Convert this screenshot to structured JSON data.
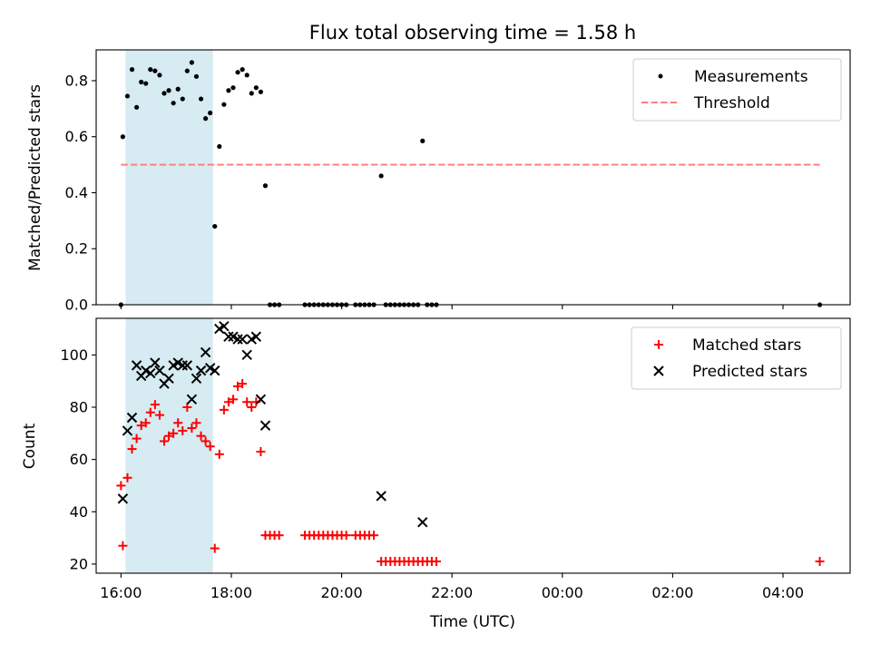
{
  "colors": {
    "measurement": "#000000",
    "threshold": "#ff7f7f",
    "matched": "#ff0000",
    "predicted": "#000000",
    "span": "#add8e6"
  },
  "chart_data": [
    {
      "type": "scatter",
      "title": "Flux total observing time = 1.58 h",
      "xlabel": "",
      "ylabel": "Matched/Predicted stars",
      "ylim": [
        0,
        0.91
      ],
      "yticks": [
        "0.0",
        "0.2",
        "0.4",
        "0.6",
        "0.8"
      ],
      "xlim": [
        "15:33",
        "05:13"
      ],
      "highlight_span": [
        "16:05",
        "17:40"
      ],
      "legend": {
        "placement": "top-right",
        "entries": [
          "Measurements",
          "Threshold"
        ]
      },
      "threshold": {
        "name": "Threshold",
        "y": 0.5,
        "x": [
          "16:00",
          "04:40"
        ]
      },
      "series": [
        {
          "name": "Measurements",
          "points": [
            [
              "16:00",
              0.0
            ],
            [
              "16:02",
              0.6
            ],
            [
              "16:07",
              0.745
            ],
            [
              "16:12",
              0.84
            ],
            [
              "16:17",
              0.705
            ],
            [
              "16:22",
              0.795
            ],
            [
              "16:27",
              0.79
            ],
            [
              "16:32",
              0.84
            ],
            [
              "16:37",
              0.835
            ],
            [
              "16:42",
              0.82
            ],
            [
              "16:47",
              0.755
            ],
            [
              "16:52",
              0.765
            ],
            [
              "16:57",
              0.72
            ],
            [
              "17:02",
              0.77
            ],
            [
              "17:07",
              0.735
            ],
            [
              "17:12",
              0.835
            ],
            [
              "17:17",
              0.865
            ],
            [
              "17:22",
              0.815
            ],
            [
              "17:27",
              0.735
            ],
            [
              "17:32",
              0.665
            ],
            [
              "17:37",
              0.685
            ],
            [
              "17:42",
              0.28
            ],
            [
              "17:47",
              0.565
            ],
            [
              "17:52",
              0.715
            ],
            [
              "17:57",
              0.765
            ],
            [
              "18:02",
              0.775
            ],
            [
              "18:07",
              0.83
            ],
            [
              "18:12",
              0.84
            ],
            [
              "18:17",
              0.82
            ],
            [
              "18:22",
              0.755
            ],
            [
              "18:27",
              0.775
            ],
            [
              "18:32",
              0.76
            ],
            [
              "18:37",
              0.425
            ],
            [
              "18:42",
              0.0
            ],
            [
              "18:47",
              0.0
            ],
            [
              "18:52",
              0.0
            ],
            [
              "19:20",
              0.0
            ],
            [
              "19:25",
              0.0
            ],
            [
              "19:30",
              0.0
            ],
            [
              "19:35",
              0.0
            ],
            [
              "19:40",
              0.0
            ],
            [
              "19:45",
              0.0
            ],
            [
              "19:50",
              0.0
            ],
            [
              "19:55",
              0.0
            ],
            [
              "20:00",
              0.0
            ],
            [
              "20:05",
              0.0
            ],
            [
              "20:15",
              0.0
            ],
            [
              "20:20",
              0.0
            ],
            [
              "20:25",
              0.0
            ],
            [
              "20:30",
              0.0
            ],
            [
              "20:35",
              0.0
            ],
            [
              "20:43",
              0.46
            ],
            [
              "20:48",
              0.0
            ],
            [
              "20:53",
              0.0
            ],
            [
              "20:58",
              0.0
            ],
            [
              "21:03",
              0.0
            ],
            [
              "21:08",
              0.0
            ],
            [
              "21:13",
              0.0
            ],
            [
              "21:18",
              0.0
            ],
            [
              "21:23",
              0.0
            ],
            [
              "21:28",
              0.585
            ],
            [
              "21:33",
              0.0
            ],
            [
              "21:38",
              0.0
            ],
            [
              "21:43",
              0.0
            ],
            [
              "04:40",
              0.0
            ]
          ]
        }
      ]
    },
    {
      "type": "scatter",
      "title": "",
      "xlabel": "Time (UTC)",
      "ylabel": "Count",
      "ylim": [
        16.5,
        114
      ],
      "yticks": [
        "20",
        "40",
        "60",
        "80",
        "100"
      ],
      "xlim": [
        "15:33",
        "05:13"
      ],
      "xticks": [
        "16:00",
        "18:00",
        "20:00",
        "22:00",
        "00:00",
        "02:00",
        "04:00"
      ],
      "highlight_span": [
        "16:05",
        "17:40"
      ],
      "legend": {
        "placement": "top-right",
        "entries": [
          "Matched stars",
          "Predicted stars"
        ]
      },
      "series": [
        {
          "name": "Matched stars",
          "marker": "plus",
          "points": [
            [
              "16:00",
              50
            ],
            [
              "16:02",
              27
            ],
            [
              "16:07",
              53
            ],
            [
              "16:12",
              64
            ],
            [
              "16:17",
              68
            ],
            [
              "16:22",
              73
            ],
            [
              "16:27",
              74
            ],
            [
              "16:32",
              78
            ],
            [
              "16:37",
              81
            ],
            [
              "16:42",
              77
            ],
            [
              "16:47",
              67
            ],
            [
              "16:52",
              69
            ],
            [
              "16:57",
              70
            ],
            [
              "17:02",
              74
            ],
            [
              "17:07",
              71
            ],
            [
              "17:12",
              80
            ],
            [
              "17:17",
              72
            ],
            [
              "17:22",
              74
            ],
            [
              "17:27",
              69
            ],
            [
              "17:32",
              67
            ],
            [
              "17:37",
              65
            ],
            [
              "17:42",
              26
            ],
            [
              "17:47",
              62
            ],
            [
              "17:52",
              79
            ],
            [
              "17:57",
              82
            ],
            [
              "18:02",
              83
            ],
            [
              "18:07",
              88
            ],
            [
              "18:12",
              89
            ],
            [
              "18:17",
              82
            ],
            [
              "18:22",
              80
            ],
            [
              "18:27",
              82
            ],
            [
              "18:32",
              63
            ],
            [
              "18:37",
              31
            ],
            [
              "18:42",
              31
            ],
            [
              "18:47",
              31
            ],
            [
              "18:52",
              31
            ],
            [
              "19:20",
              31
            ],
            [
              "19:25",
              31
            ],
            [
              "19:30",
              31
            ],
            [
              "19:35",
              31
            ],
            [
              "19:40",
              31
            ],
            [
              "19:45",
              31
            ],
            [
              "19:50",
              31
            ],
            [
              "19:55",
              31
            ],
            [
              "20:00",
              31
            ],
            [
              "20:05",
              31
            ],
            [
              "20:15",
              31
            ],
            [
              "20:20",
              31
            ],
            [
              "20:25",
              31
            ],
            [
              "20:30",
              31
            ],
            [
              "20:35",
              31
            ],
            [
              "20:43",
              21
            ],
            [
              "20:48",
              21
            ],
            [
              "20:53",
              21
            ],
            [
              "20:58",
              21
            ],
            [
              "21:03",
              21
            ],
            [
              "21:08",
              21
            ],
            [
              "21:13",
              21
            ],
            [
              "21:18",
              21
            ],
            [
              "21:23",
              21
            ],
            [
              "21:28",
              21
            ],
            [
              "21:33",
              21
            ],
            [
              "21:38",
              21
            ],
            [
              "21:43",
              21
            ],
            [
              "04:40",
              21
            ]
          ]
        },
        {
          "name": "Predicted stars",
          "marker": "x",
          "points": [
            [
              "16:02",
              45
            ],
            [
              "16:07",
              71
            ],
            [
              "16:12",
              76
            ],
            [
              "16:17",
              96
            ],
            [
              "16:22",
              92
            ],
            [
              "16:27",
              94
            ],
            [
              "16:32",
              93
            ],
            [
              "16:37",
              97
            ],
            [
              "16:42",
              94
            ],
            [
              "16:47",
              89
            ],
            [
              "16:52",
              91
            ],
            [
              "16:57",
              96
            ],
            [
              "17:02",
              97
            ],
            [
              "17:07",
              96
            ],
            [
              "17:12",
              96
            ],
            [
              "17:17",
              83
            ],
            [
              "17:22",
              91
            ],
            [
              "17:27",
              94
            ],
            [
              "17:32",
              101
            ],
            [
              "17:37",
              95
            ],
            [
              "17:42",
              94
            ],
            [
              "17:47",
              110
            ],
            [
              "17:52",
              111
            ],
            [
              "17:57",
              107
            ],
            [
              "18:02",
              107
            ],
            [
              "18:07",
              106
            ],
            [
              "18:12",
              106
            ],
            [
              "18:17",
              100
            ],
            [
              "18:22",
              106
            ],
            [
              "18:27",
              107
            ],
            [
              "18:32",
              83
            ],
            [
              "18:37",
              73
            ],
            [
              "20:43",
              46
            ],
            [
              "21:28",
              36
            ]
          ]
        }
      ]
    }
  ]
}
